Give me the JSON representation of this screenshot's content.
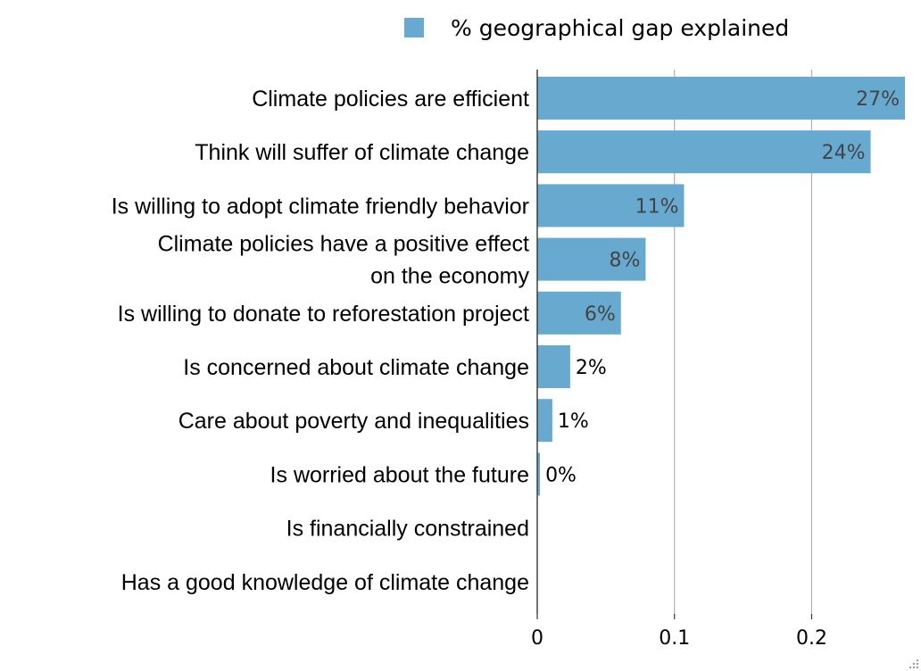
{
  "chart_data": {
    "type": "bar",
    "orientation": "horizontal",
    "title": "",
    "xlabel": "",
    "ylabel": "",
    "categories": [
      [
        "Climate policies are efficient"
      ],
      [
        "Think will suffer of climate change"
      ],
      [
        "Is willing to adopt climate friendly behavior"
      ],
      [
        "Climate policies have a positive effect ",
        "on the economy"
      ],
      [
        "Is willing to donate to reforestation project"
      ],
      [
        "Is concerned about climate change"
      ],
      [
        "Care about poverty and inequalities"
      ],
      [
        "Is worried about the future"
      ],
      [
        "Is financially constrained"
      ],
      [
        "Has a good knowledge of climate change"
      ]
    ],
    "series": [
      {
        "name": "% geographical gap explained",
        "color": "#67a9cf",
        "values": [
          0.268,
          0.243,
          0.107,
          0.079,
          0.061,
          0.024,
          0.011,
          0.002,
          0.0,
          0.0
        ],
        "labels": [
          "27%",
          "24%",
          "11%",
          "8%",
          "6%",
          "2%",
          "1%",
          "0%",
          null,
          null
        ]
      }
    ],
    "xlim": [
      0,
      0.268
    ],
    "xticks": [
      0,
      0.1,
      0.2
    ],
    "xtick_labels": [
      "0",
      "0.1",
      "0.2"
    ],
    "grid": true,
    "legend_position": "top-center",
    "gridline_color": "#b0b0b0",
    "label_inside_color": "#444444",
    "label_outside_color": "#000000"
  }
}
